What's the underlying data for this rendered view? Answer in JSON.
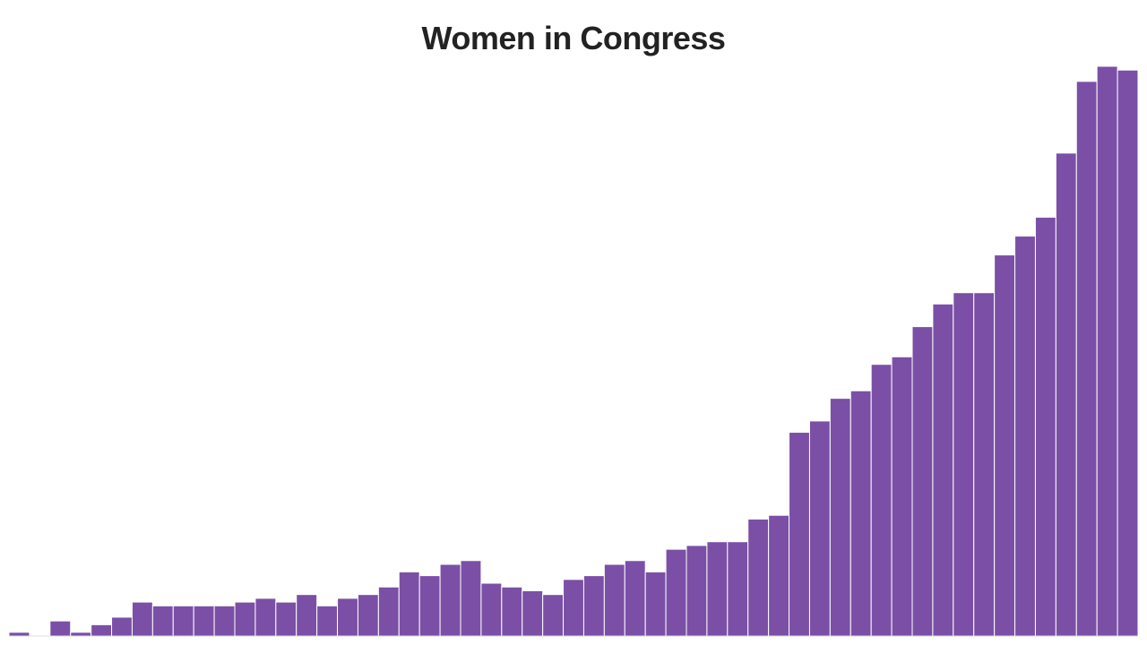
{
  "chart_data": {
    "type": "bar",
    "title": "Women in Congress",
    "xlabel": "",
    "ylabel": "",
    "ylim": [
      0,
      151
    ],
    "grid": false,
    "legend": "none",
    "bar_color": "#7b4fa6",
    "series": [
      {
        "name": "Women in Congress",
        "values": [
          1,
          0,
          4,
          1,
          3,
          5,
          9,
          8,
          8,
          8,
          8,
          9,
          10,
          9,
          11,
          8,
          10,
          11,
          13,
          17,
          16,
          19,
          20,
          14,
          13,
          12,
          11,
          15,
          16,
          19,
          20,
          17,
          23,
          24,
          25,
          25,
          31,
          32,
          54,
          57,
          63,
          65,
          72,
          74,
          82,
          88,
          91,
          91,
          101,
          106,
          111,
          128,
          147,
          151,
          150
        ]
      }
    ]
  }
}
